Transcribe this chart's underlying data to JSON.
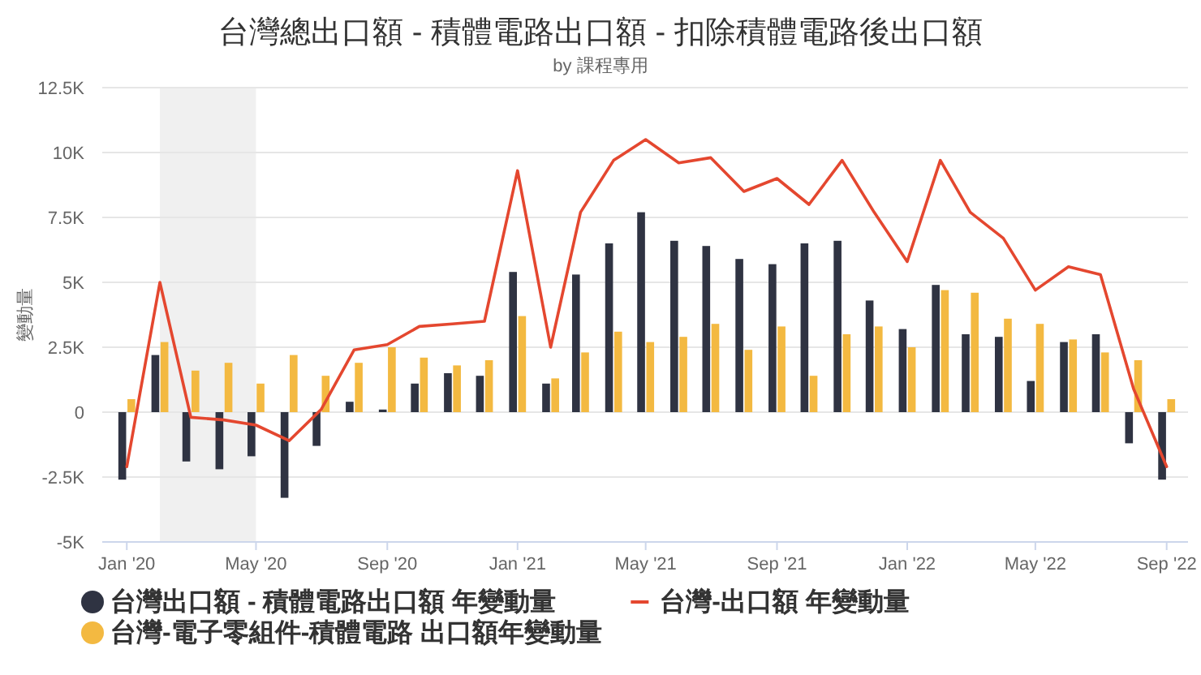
{
  "chart_data": {
    "type": "bar",
    "title": "台灣總出口額 - 積體電路出口額 - 扣除積體電路後出口額",
    "subtitle": "by 課程專用",
    "ylabel": "變動量",
    "x": [
      "2020-01",
      "2020-02",
      "2020-03",
      "2020-04",
      "2020-05",
      "2020-06",
      "2020-07",
      "2020-08",
      "2020-09",
      "2020-10",
      "2020-11",
      "2020-12",
      "2021-01",
      "2021-02",
      "2021-03",
      "2021-04",
      "2021-05",
      "2021-06",
      "2021-07",
      "2021-08",
      "2021-09",
      "2021-10",
      "2021-11",
      "2021-12",
      "2022-01",
      "2022-02",
      "2022-03",
      "2022-04",
      "2022-05",
      "2022-06",
      "2022-07",
      "2022-08",
      "2022-09"
    ],
    "series": [
      {
        "name": "台灣出口額 - 積體電路出口額 年變動量",
        "color": "#2f3342",
        "values": [
          -2600,
          2200,
          -1900,
          -2200,
          -1700,
          -3300,
          -1300,
          400,
          100,
          1100,
          1500,
          1400,
          5400,
          1100,
          5300,
          6500,
          7700,
          6600,
          6400,
          5900,
          5700,
          6500,
          6600,
          4300,
          3200,
          4900,
          3000,
          2900,
          1200,
          2700,
          3000,
          -1200,
          -2600
        ]
      },
      {
        "name": "台灣-出口額 年變動量",
        "type": "line",
        "color": "#e4472f",
        "values": [
          -2100,
          5000,
          -200,
          -300,
          -500,
          -1100,
          100,
          2400,
          2600,
          3300,
          3400,
          3500,
          9300,
          2500,
          7700,
          9700,
          10500,
          9600,
          9800,
          8500,
          9000,
          8000,
          9700,
          7700,
          5800,
          9700,
          7700,
          6700,
          4700,
          5600,
          5300,
          900,
          -2100
        ]
      },
      {
        "name": "台灣-電子零組件-積體電路 出口額年變動量",
        "color": "#f3b941",
        "values": [
          500,
          2700,
          1600,
          1900,
          1100,
          2200,
          1400,
          1900,
          2500,
          2100,
          1800,
          2000,
          3700,
          1300,
          2300,
          3100,
          2700,
          2900,
          3400,
          2400,
          3300,
          1400,
          3000,
          3300,
          2500,
          4700,
          4600,
          3600,
          3400,
          2800,
          2300,
          2000,
          500
        ]
      }
    ],
    "xlim": [
      "2019-12-09",
      "2022-09-21"
    ],
    "xticks": [
      {
        "value": "2020-01",
        "label": "Jan '20"
      },
      {
        "value": "2020-05",
        "label": "May '20"
      },
      {
        "value": "2020-09",
        "label": "Sep '20"
      },
      {
        "value": "2021-01",
        "label": "Jan '21"
      },
      {
        "value": "2021-05",
        "label": "May '21"
      },
      {
        "value": "2021-09",
        "label": "Sep '21"
      },
      {
        "value": "2022-01",
        "label": "Jan '22"
      },
      {
        "value": "2022-05",
        "label": "May '22"
      },
      {
        "value": "2022-09",
        "label": "Sep '22"
      }
    ],
    "ylim": [
      -5000,
      12500
    ],
    "yticks": [
      {
        "value": -5000,
        "label": "-5K"
      },
      {
        "value": -2500,
        "label": "-2.5K"
      },
      0,
      {
        "value": 2500,
        "label": "2.5K"
      },
      {
        "value": 5000,
        "label": "5K"
      },
      {
        "value": 7500,
        "label": "7.5K"
      },
      {
        "value": 10000,
        "label": "10K"
      },
      {
        "value": 12500,
        "label": "12.5K"
      }
    ],
    "grid": "y",
    "legend": "bottom",
    "bands": [
      {
        "axis": "x",
        "from": "2020-02",
        "to": "2020-05",
        "color": "#f0f0f0"
      }
    ]
  }
}
